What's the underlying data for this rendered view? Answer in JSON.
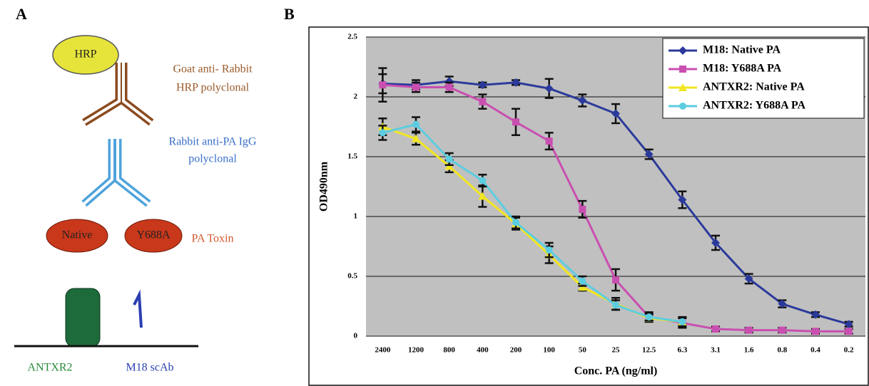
{
  "panel_a": {
    "label": "A",
    "hrp": "HRP",
    "secondary": [
      "Goat anti- Rabbit",
      "HRP polyclonal"
    ],
    "primary": [
      "Rabbit anti-PA IgG",
      "polyclonal"
    ],
    "native": "Native",
    "mutant": "Y688A",
    "toxin": "PA Toxin",
    "receptor": "ANTXR2",
    "antibody": "M18 scAb"
  },
  "panel_b": {
    "label": "B"
  },
  "chart_data": {
    "type": "line",
    "x_label": "Conc. PA (ng/ml)",
    "y_label": "OD490nm",
    "categories": [
      "2400",
      "1200",
      "800",
      "400",
      "200",
      "100",
      "50",
      "25",
      "12.5",
      "6.3",
      "3.1",
      "1.6",
      "0.8",
      "0.4",
      "0.2"
    ],
    "ylim": [
      0,
      2.5
    ],
    "yticks": [
      0,
      0.5,
      1,
      1.5,
      2,
      2.5
    ],
    "grid": true,
    "legend": "upper right",
    "series": [
      {
        "name": "M18: Native PA",
        "color": "#2b3a9a",
        "marker": "diamond",
        "values": [
          2.11,
          2.1,
          2.13,
          2.1,
          2.12,
          2.07,
          1.97,
          1.86,
          1.52,
          1.14,
          0.78,
          0.48,
          0.27,
          0.18,
          0.1
        ],
        "errors": [
          0.08,
          0.04,
          0.04,
          0.02,
          0.02,
          0.08,
          0.05,
          0.08,
          0.04,
          0.07,
          0.06,
          0.04,
          0.03,
          0.02,
          0.02
        ]
      },
      {
        "name": "M18: Y688A PA",
        "color": "#c94fb0",
        "marker": "square",
        "values": [
          2.1,
          2.08,
          2.08,
          1.96,
          1.79,
          1.63,
          1.06,
          0.47,
          0.16,
          0.11,
          0.06,
          0.05,
          0.05,
          0.04,
          0.04
        ],
        "errors": [
          0.14,
          0.04,
          0.04,
          0.06,
          0.11,
          0.07,
          0.07,
          0.09,
          0.04,
          0.04,
          0.02,
          0.02,
          0.02,
          0.02,
          0.02
        ]
      },
      {
        "name": "ANTXR2: Native PA",
        "color": "#f2e620",
        "marker": "triangle",
        "values": [
          1.75,
          1.65,
          1.42,
          1.17,
          0.94,
          0.68,
          0.41,
          0.27,
          0.15,
          0.12,
          null,
          null,
          null,
          null,
          null
        ],
        "errors": [
          0.07,
          0.05,
          0.05,
          0.09,
          0.05,
          0.07,
          0.03,
          0.05,
          0.03,
          0.03,
          null,
          null,
          null,
          null,
          null
        ]
      },
      {
        "name": "ANTXR2: Y688A PA",
        "color": "#5ccde0",
        "marker": "circle",
        "values": [
          1.7,
          1.77,
          1.48,
          1.3,
          0.95,
          0.72,
          0.46,
          0.26,
          0.16,
          0.12,
          null,
          null,
          null,
          null,
          null
        ],
        "errors": [
          0.06,
          0.06,
          0.05,
          0.05,
          0.05,
          0.06,
          0.04,
          0.04,
          0.03,
          0.04,
          null,
          null,
          null,
          null,
          null
        ]
      }
    ]
  }
}
